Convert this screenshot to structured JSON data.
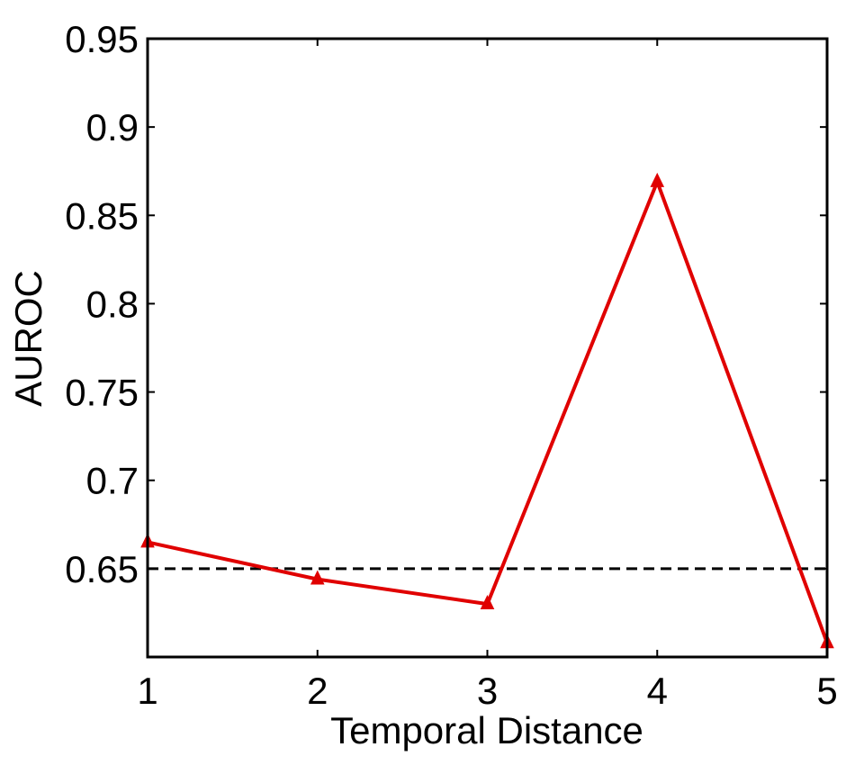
{
  "chart_data": {
    "type": "line",
    "title": "",
    "xlabel": "Temporal Distance",
    "ylabel": "AUROC",
    "xlim": [
      1,
      5
    ],
    "ylim": [
      0.6,
      0.95
    ],
    "x_ticks": [
      1,
      2,
      3,
      4,
      5
    ],
    "x_tick_labels": [
      "1",
      "2",
      "3",
      "4",
      "5"
    ],
    "y_ticks": [
      0.65,
      0.7,
      0.75,
      0.8,
      0.85,
      0.9,
      0.95
    ],
    "y_tick_labels": [
      "0.65",
      "0.7",
      "0.75",
      "0.8",
      "0.85",
      "0.9",
      "0.95"
    ],
    "grid": false,
    "series": [
      {
        "x": [
          1,
          2,
          3,
          4,
          5
        ],
        "values": [
          0.665,
          0.644,
          0.63,
          0.869,
          0.608
        ],
        "color": "#e00000",
        "marker": "triangle"
      }
    ],
    "reference_line": {
      "y": 0.65,
      "style": "dashed",
      "color": "#000000"
    }
  }
}
